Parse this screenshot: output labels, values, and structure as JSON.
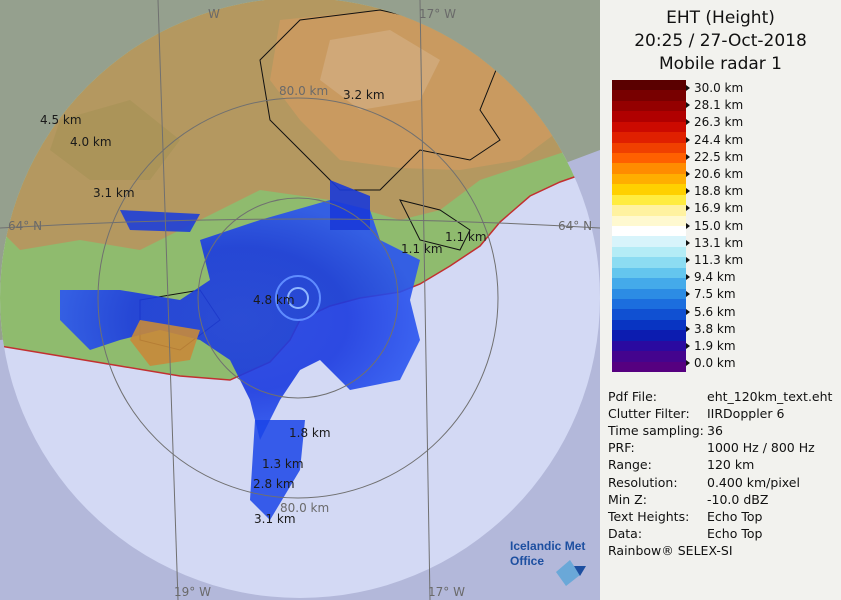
{
  "header": {
    "product": "EHT (Height)",
    "datetime": "20:25 / 27-Oct-2018",
    "radar": "Mobile radar 1"
  },
  "colorbar": {
    "labels": [
      "30.0 km",
      "28.1 km",
      "26.3 km",
      "24.4 km",
      "22.5 km",
      "20.6 km",
      "18.8 km",
      "16.9 km",
      "15.0 km",
      "13.1 km",
      "11.3 km",
      "9.4 km",
      "7.5 km",
      "5.6 km",
      "3.8 km",
      "1.9 km",
      "0.0 km"
    ],
    "colors": [
      "#5a0000",
      "#780000",
      "#940000",
      "#b00000",
      "#cc0a00",
      "#e02000",
      "#f04000",
      "#ff6000",
      "#ff8c00",
      "#ffae00",
      "#ffd000",
      "#ffec40",
      "#fff2a0",
      "#fff9d0",
      "#ffffff",
      "#d8f4fb",
      "#b4ecf6",
      "#8cdcf2",
      "#64c6ee",
      "#44aaea",
      "#2c8ce4",
      "#1c6ede",
      "#1050d2",
      "#0834c2",
      "#0c1cb0",
      "#2a0aa0",
      "#44048e",
      "#560080"
    ]
  },
  "info": [
    {
      "key": "Pdf File:",
      "value": "eht_120km_text.eht"
    },
    {
      "key": "Clutter Filter:",
      "value": "IIRDoppler 6"
    },
    {
      "key": "Time sampling:",
      "value": "36"
    },
    {
      "key": "PRF:",
      "value": "1000 Hz / 800 Hz"
    },
    {
      "key": "Range:",
      "value": "120 km"
    },
    {
      "key": "Resolution:",
      "value": "0.400 km/pixel"
    },
    {
      "key": "Min Z:",
      "value": "-10.0 dBZ"
    },
    {
      "key": "Text Heights:",
      "value": "Echo Top"
    },
    {
      "key": "Data:",
      "value": "Echo Top"
    }
  ],
  "footer": "Rainbow® SELEX-SI",
  "logo": {
    "line1": "Icelandic Met",
    "line2": "Office"
  },
  "map": {
    "grid_labels": [
      "W",
      "17° W",
      "64° N",
      "64° N",
      "19° W",
      "17° W"
    ],
    "range_labels": [
      "80.0 km",
      "80.0 km"
    ],
    "height_labels": [
      "3.2 km",
      "4.5 km",
      "4.0 km",
      "3.1 km",
      "1.1 km",
      "1.1 km",
      "1.8 km",
      "4.8 km",
      "1.3 km",
      "2.8 km",
      "3.1 km"
    ]
  }
}
